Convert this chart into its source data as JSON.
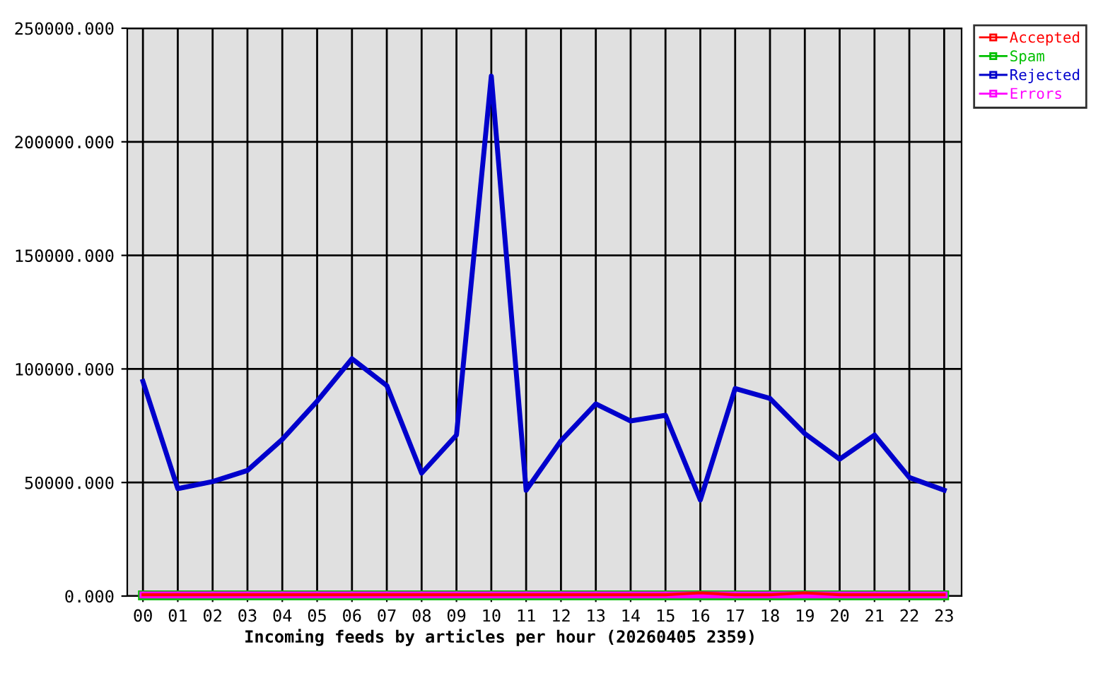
{
  "chart_data": {
    "type": "line",
    "xlabel": "Incoming feeds by articles per hour (20260405 2359)",
    "categories": [
      "00",
      "01",
      "02",
      "03",
      "04",
      "05",
      "06",
      "07",
      "08",
      "09",
      "10",
      "11",
      "12",
      "13",
      "14",
      "15",
      "16",
      "17",
      "18",
      "19",
      "20",
      "21",
      "22",
      "23"
    ],
    "series": [
      {
        "name": "Accepted",
        "color": "#ff0000",
        "values": [
          600,
          600,
          600,
          600,
          600,
          600,
          600,
          600,
          600,
          600,
          600,
          600,
          600,
          600,
          600,
          600,
          1400,
          600,
          600,
          1400,
          600,
          600,
          600,
          600
        ]
      },
      {
        "name": "Spam",
        "color": "#00c000",
        "values": [
          300,
          300,
          300,
          300,
          300,
          300,
          300,
          300,
          300,
          300,
          300,
          300,
          300,
          300,
          300,
          300,
          300,
          300,
          300,
          300,
          300,
          300,
          300,
          300
        ]
      },
      {
        "name": "Rejected",
        "color": "#0000cc",
        "values": [
          94500,
          47300,
          50400,
          55300,
          69000,
          85800,
          104500,
          92700,
          54100,
          70900,
          228900,
          46600,
          68400,
          84600,
          77100,
          79600,
          42300,
          91400,
          87000,
          71500,
          60300,
          70900,
          52200,
          46600
        ]
      },
      {
        "name": "Errors",
        "color": "#ff00ff",
        "values": [
          500,
          500,
          500,
          500,
          500,
          500,
          500,
          500,
          500,
          500,
          500,
          500,
          500,
          500,
          500,
          500,
          500,
          500,
          500,
          500,
          500,
          500,
          500,
          500
        ]
      }
    ],
    "ylim": [
      0,
      250000
    ],
    "yticks": [
      {
        "value": 0,
        "label": "0.000"
      },
      {
        "value": 50000,
        "label": "50000.000"
      },
      {
        "value": 100000,
        "label": "100000.000"
      },
      {
        "value": 150000,
        "label": "150000.000"
      },
      {
        "value": 200000,
        "label": "200000.000"
      },
      {
        "value": 250000,
        "label": "250000.000"
      }
    ],
    "grid": true,
    "legend": "top right",
    "marker": "none",
    "line_style": "solid"
  }
}
